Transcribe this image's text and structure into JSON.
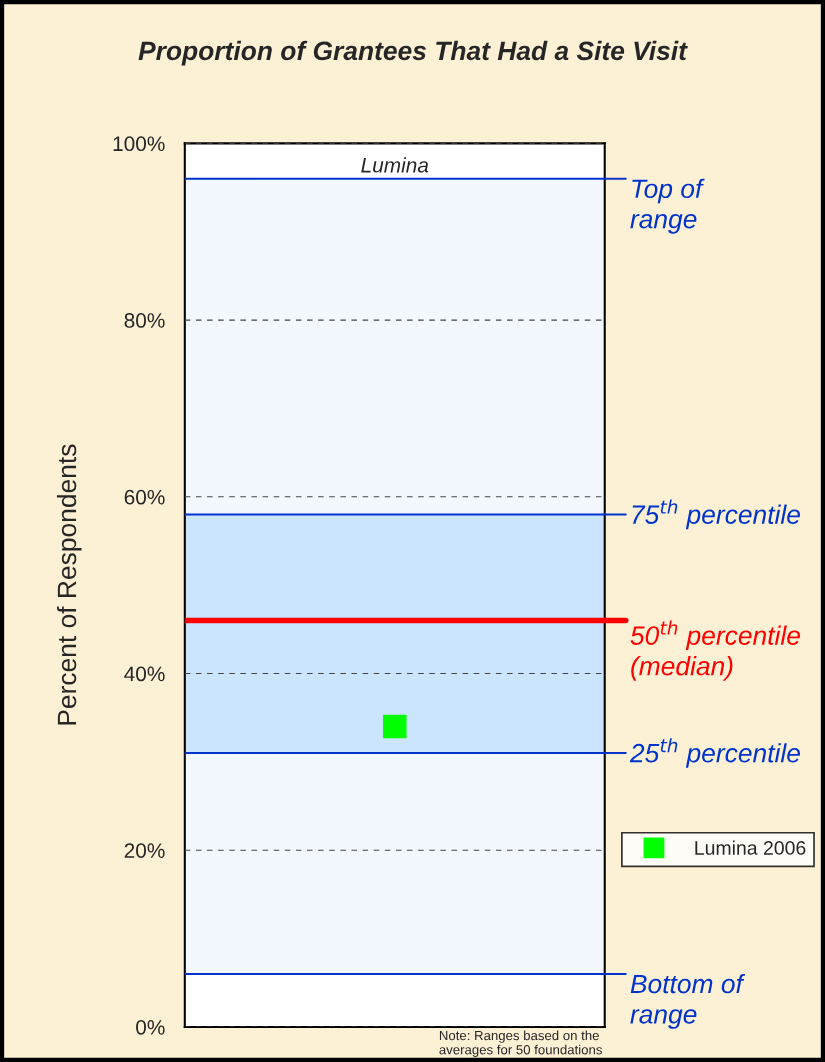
{
  "chart_data": {
    "type": "scatter",
    "title": "Proportion of Grantees That Had a Site Visit",
    "ylabel": "Percent of Respondents",
    "categories": [
      "Lumina"
    ],
    "series": [
      {
        "name": "Lumina 2006",
        "color": "#00ff00",
        "values": [
          34
        ]
      }
    ],
    "ylim": [
      0,
      100
    ],
    "yticks": [
      {
        "value": 0,
        "label": "0%"
      },
      {
        "value": 20,
        "label": "20%"
      },
      {
        "value": 40,
        "label": "40%"
      },
      {
        "value": 60,
        "label": "60%"
      },
      {
        "value": 80,
        "label": "80%"
      },
      {
        "value": 100,
        "label": "100%"
      }
    ],
    "grid": "y",
    "legend": "right",
    "marker": "square",
    "bands": [
      {
        "axis": "y",
        "from": 6,
        "to": 96,
        "color": "#f3f8fe"
      },
      {
        "axis": "y",
        "from": 31,
        "to": 58,
        "color": "#cce5ff"
      }
    ],
    "ref_lines": [
      {
        "axis": "y",
        "value": 96,
        "label": "Top of\nrange",
        "color": "#0033cc"
      },
      {
        "axis": "y",
        "value": 58,
        "label": "75$^{th}$ percentile",
        "color": "#0033cc"
      },
      {
        "axis": "y",
        "value": 46,
        "label": "50$^{th}$ percentile\n(median)",
        "color": "#ff0000"
      },
      {
        "axis": "y",
        "value": 31,
        "label": "25$^{th}$ percentile",
        "color": "#0033cc"
      },
      {
        "axis": "y",
        "value": 6,
        "label": "Bottom of\nrange",
        "color": "#0033cc"
      }
    ],
    "annotations": [
      "Note: Ranges based on the\naverages for 50 foundations"
    ]
  }
}
